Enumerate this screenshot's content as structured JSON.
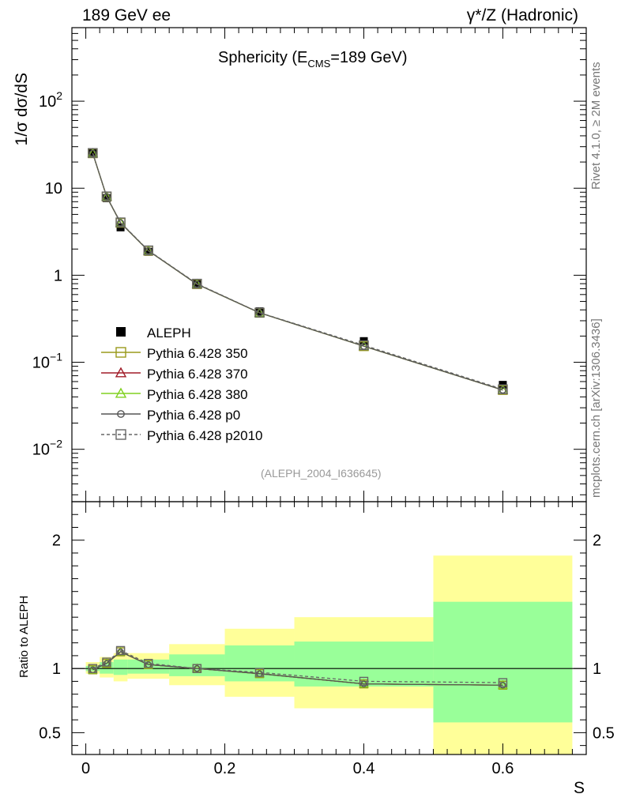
{
  "header": {
    "left": "189 GeV ee",
    "right": "γ*/Z (Hadronic)"
  },
  "side_labels": {
    "rivet": "Rivet 4.1.0, ≥ 2M events",
    "mcplots": "mcplots.cern.ch [arXiv:1306.3436]"
  },
  "chart_data": [
    {
      "type": "line",
      "title_main": "Sphericity (E",
      "title_sub": "CMS",
      "title_rest": "=189 GeV)",
      "ylabel": "1/σ  dσ/dS",
      "yscale": "log",
      "ylim": [
        0.0025,
        700
      ],
      "xlim": [
        -0.02,
        0.72
      ],
      "annotation": "(ALEPH_2004_I636645)",
      "legend_position": "middle-left",
      "y_tick_labels": [
        "10^-2",
        "10^-1",
        "1",
        "10",
        "10^2"
      ],
      "y_tick_values": [
        0.01,
        0.1,
        1,
        10,
        100
      ],
      "x": [
        0.01,
        0.03,
        0.05,
        0.09,
        0.16,
        0.25,
        0.4,
        0.6
      ],
      "data": {
        "name": "ALEPH",
        "values": [
          25.5,
          7.7,
          3.55,
          1.86,
          0.8,
          0.385,
          0.175,
          0.055
        ]
      },
      "series": [
        {
          "name": "Pythia 6.428 350",
          "color": "#9a9a1c",
          "marker": "square-open",
          "dash": false,
          "values": [
            25.2,
            8.0,
            4.0,
            1.91,
            0.79,
            0.37,
            0.153,
            0.048
          ]
        },
        {
          "name": "Pythia 6.428 370",
          "color": "#a01c28",
          "marker": "triangle-open",
          "dash": false,
          "values": [
            25.2,
            8.0,
            4.0,
            1.91,
            0.79,
            0.37,
            0.153,
            0.048
          ]
        },
        {
          "name": "Pythia 6.428 380",
          "color": "#80d020",
          "marker": "triangle-open",
          "dash": false,
          "values": [
            25.2,
            8.0,
            4.0,
            1.91,
            0.79,
            0.37,
            0.153,
            0.048
          ]
        },
        {
          "name": "Pythia 6.428 p0",
          "color": "#555555",
          "marker": "circle-open",
          "dash": false,
          "values": [
            25.2,
            8.0,
            4.0,
            1.91,
            0.79,
            0.37,
            0.153,
            0.048
          ]
        },
        {
          "name": "Pythia 6.428 p2010",
          "color": "#666666",
          "marker": "square-open",
          "dash": true,
          "values": [
            25.4,
            8.05,
            4.05,
            1.93,
            0.8,
            0.372,
            0.157,
            0.049
          ]
        }
      ]
    },
    {
      "type": "line",
      "ylabel": "Ratio to ALEPH",
      "xlabel": "S",
      "ylim": [
        0.33,
        2.3
      ],
      "xlim": [
        -0.02,
        0.72
      ],
      "x_tick_labels": [
        "0",
        "0.2",
        "0.4",
        "0.6"
      ],
      "x_tick_values": [
        0,
        0.2,
        0.4,
        0.6
      ],
      "y_tick_labels": [
        "0.5",
        "1",
        "2"
      ],
      "y_tick_values": [
        0.5,
        1,
        2
      ],
      "bands": {
        "edges": [
          0.0,
          0.02,
          0.04,
          0.06,
          0.12,
          0.2,
          0.3,
          0.5,
          0.7
        ],
        "outer_low": [
          0.96,
          0.93,
          0.9,
          0.92,
          0.87,
          0.78,
          0.69,
          0.33
        ],
        "outer_high": [
          1.05,
          1.09,
          1.12,
          1.12,
          1.19,
          1.31,
          1.4,
          1.88
        ],
        "inner_low": [
          0.98,
          0.96,
          0.95,
          0.96,
          0.94,
          0.9,
          0.86,
          0.58
        ],
        "inner_high": [
          1.02,
          1.05,
          1.07,
          1.07,
          1.11,
          1.18,
          1.21,
          1.52
        ],
        "outer_color": "#ffff99",
        "inner_color": "#99ff99"
      },
      "series": [
        {
          "name": "Pythia 6.428 350",
          "color": "#9a9a1c",
          "marker": "square-open",
          "dash": false,
          "values": [
            0.99,
            1.04,
            1.13,
            1.03,
            1.0,
            0.96,
            0.88,
            0.87
          ]
        },
        {
          "name": "Pythia 6.428 370",
          "color": "#a01c28",
          "marker": "triangle-open",
          "dash": false,
          "values": [
            0.99,
            1.04,
            1.13,
            1.03,
            1.0,
            0.96,
            0.88,
            0.87
          ]
        },
        {
          "name": "Pythia 6.428 380",
          "color": "#80d020",
          "marker": "triangle-open",
          "dash": false,
          "values": [
            0.99,
            1.04,
            1.13,
            1.03,
            1.0,
            0.96,
            0.88,
            0.87
          ]
        },
        {
          "name": "Pythia 6.428 p0",
          "color": "#555555",
          "marker": "circle-open",
          "dash": false,
          "values": [
            0.99,
            1.04,
            1.13,
            1.03,
            1.0,
            0.96,
            0.88,
            0.87
          ]
        },
        {
          "name": "Pythia 6.428 p2010",
          "color": "#666666",
          "marker": "square-open",
          "dash": true,
          "values": [
            1.0,
            1.05,
            1.14,
            1.04,
            1.0,
            0.97,
            0.9,
            0.89
          ]
        }
      ]
    }
  ]
}
